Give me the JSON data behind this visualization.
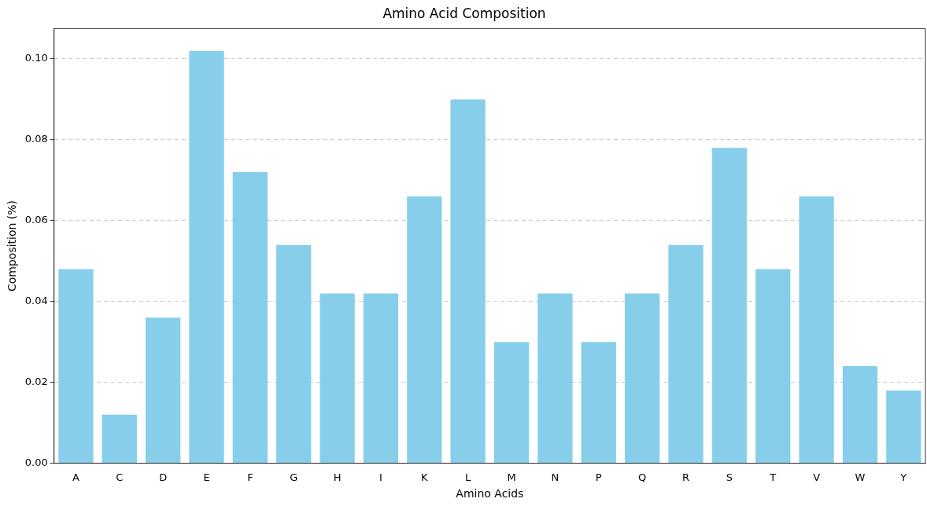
{
  "chart_data": {
    "type": "bar",
    "title": "Amino Acid Composition",
    "xlabel": "Amino Acids",
    "ylabel": "Composition (%)",
    "categories": [
      "A",
      "C",
      "D",
      "E",
      "F",
      "G",
      "H",
      "I",
      "K",
      "L",
      "M",
      "N",
      "P",
      "Q",
      "R",
      "S",
      "T",
      "V",
      "W",
      "Y"
    ],
    "values": [
      0.048,
      0.012,
      0.036,
      0.102,
      0.072,
      0.054,
      0.042,
      0.042,
      0.066,
      0.09,
      0.03,
      0.042,
      0.03,
      0.042,
      0.054,
      0.078,
      0.048,
      0.066,
      0.024,
      0.018
    ],
    "color": "#87ceeb",
    "ylim": [
      0,
      0.1075
    ],
    "yticks": [
      {
        "value": 0,
        "label": "0.00"
      },
      {
        "value": 0.02,
        "label": "0.02"
      },
      {
        "value": 0.04,
        "label": "0.04"
      },
      {
        "value": 0.06,
        "label": "0.06"
      },
      {
        "value": 0.08,
        "label": "0.08"
      },
      {
        "value": 0.1,
        "label": "0.10"
      }
    ],
    "grid": "y",
    "legend": false
  }
}
